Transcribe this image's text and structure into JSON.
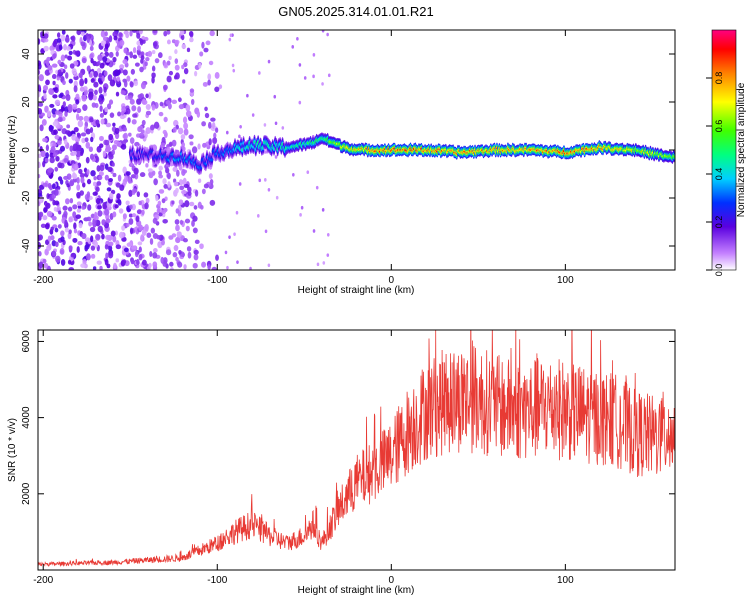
{
  "title": "GN05.2025.314.01.01.R21",
  "colors": {
    "trace": "#e83a34",
    "axis": "#000000",
    "background": "#ffffff"
  },
  "chart_data": [
    {
      "type": "heatmap",
      "name": "spectrogram",
      "xlabel": "Height of straight line (km)",
      "ylabel": "Frequency (Hz)",
      "xlim": [
        -203,
        163
      ],
      "ylim": [
        -50,
        50
      ],
      "xticks": [
        -200,
        -100,
        0,
        100
      ],
      "xtick_labels": [
        "-200",
        "-100",
        "0",
        "100"
      ],
      "yticks": [
        -40,
        -20,
        0,
        20,
        40
      ],
      "ytick_labels": [
        "-40",
        "-20",
        "0",
        "20",
        "40"
      ],
      "colorbar": {
        "label": "Normalized spectral amplitude",
        "range": [
          0,
          1
        ],
        "ticks": [
          0.0,
          0.2,
          0.4,
          0.6,
          0.8
        ],
        "tick_labels": [
          "0.0",
          "0.2",
          "0.4",
          "0.6",
          "0.8"
        ]
      },
      "ridge": {
        "description": "dominant spectral line",
        "x": [
          -140,
          -120,
          -110,
          -100,
          -80,
          -60,
          -45,
          -40,
          -30,
          -20,
          0,
          20,
          40,
          60,
          80,
          100,
          120,
          140,
          160
        ],
        "y": [
          -2,
          -3,
          -6,
          -1,
          2,
          1,
          3,
          5,
          2,
          0,
          0,
          0,
          -1,
          0,
          0,
          -1,
          1,
          0,
          -3
        ],
        "amplitude": [
          0.25,
          0.35,
          0.3,
          0.3,
          0.45,
          0.45,
          0.5,
          0.55,
          0.65,
          0.75,
          0.85,
          0.85,
          0.8,
          0.8,
          0.8,
          0.85,
          0.8,
          0.7,
          0.6
        ]
      }
    },
    {
      "type": "line",
      "name": "snr",
      "xlabel": "Height of straight line (km)",
      "ylabel": "SNR (10 * v/v)",
      "xlim": [
        -203,
        163
      ],
      "ylim": [
        0,
        6300
      ],
      "xticks": [
        -200,
        -100,
        0,
        100
      ],
      "xtick_labels": [
        "-200",
        "-100",
        "0",
        "100"
      ],
      "yticks": [
        2000,
        4000,
        6000
      ],
      "ytick_labels": [
        "2000",
        "4000",
        "6000"
      ],
      "envelope": {
        "x": [
          -203,
          -160,
          -140,
          -120,
          -100,
          -90,
          -80,
          -70,
          -60,
          -50,
          -45,
          -40,
          -30,
          -20,
          -10,
          0,
          10,
          20,
          30,
          40,
          50,
          60,
          70,
          80,
          90,
          100,
          110,
          120,
          130,
          140,
          150,
          160,
          163
        ],
        "y": [
          150,
          200,
          260,
          320,
          700,
          1000,
          1200,
          900,
          700,
          900,
          1200,
          700,
          1600,
          2300,
          2600,
          3000,
          3700,
          4200,
          4400,
          4500,
          4500,
          4300,
          4200,
          4200,
          4300,
          4200,
          4100,
          4000,
          3900,
          3600,
          3500,
          3600,
          3500
        ]
      }
    }
  ]
}
